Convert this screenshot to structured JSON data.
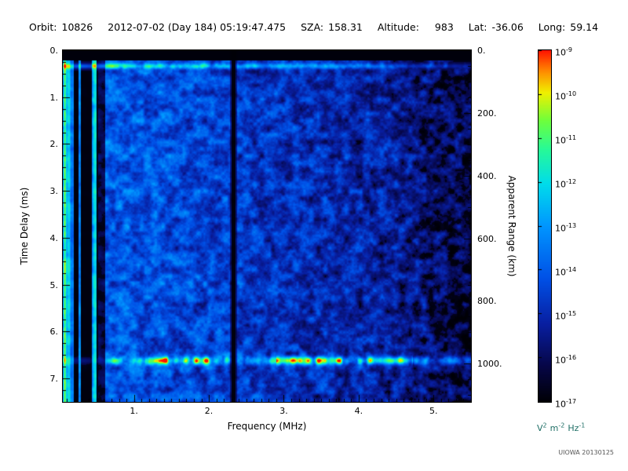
{
  "header": {
    "orbit_label": "Orbit:",
    "orbit_value": "10826",
    "datetime": "2012-07-02 (Day 184) 05:19:47.475",
    "sza_label": "SZA:",
    "sza_value": "158.31",
    "alt_label": "Altitude:",
    "alt_value": "983",
    "lat_label": "Lat:",
    "lat_value": "-36.06",
    "long_label": "Long:",
    "long_value": "59.14"
  },
  "footer": {
    "credit": "UIOWA 20130125"
  },
  "chart_data": {
    "type": "heatmap",
    "title": "",
    "xlabel": "Frequency (MHz)",
    "x_ticks": [
      "1.",
      "2.",
      "3.",
      "4.",
      "5."
    ],
    "x_tick_values": [
      1,
      2,
      3,
      4,
      5
    ],
    "xlim": [
      0.05,
      5.5
    ],
    "ylabel_left": "Time Delay (ms)",
    "y_left_ticks": [
      "0.",
      "1.",
      "2.",
      "3.",
      "4.",
      "5.",
      "6.",
      "7."
    ],
    "y_left_tick_values": [
      0,
      1,
      2,
      3,
      4,
      5,
      6,
      7
    ],
    "ylim_left": [
      0,
      7.5
    ],
    "ylabel_right": "Apparent Range (km)",
    "y_right_ticks": [
      "0.",
      "200.",
      "400.",
      "600.",
      "800.",
      "1000."
    ],
    "y_right_tick_values": [
      0,
      200,
      400,
      600,
      800,
      1000
    ],
    "ylim_right": [
      0,
      1122
    ],
    "grid": false,
    "colorbar": {
      "base": "10",
      "tick_exponents": [
        -9,
        -10,
        -11,
        -12,
        -13,
        -14,
        -15,
        -16,
        -17
      ],
      "unit_parts": [
        [
          "V",
          "2"
        ],
        [
          "m",
          "-2"
        ],
        [
          "Hz",
          "-1"
        ]
      ],
      "top_color": "#ff0000",
      "bottom_color": "#000010"
    },
    "features": {
      "description": "Radar sounder ionogram: blue speckle noise background, brighter toward low frequency, fading to black above ~4.5 MHz",
      "top_blank_band_ms": [
        0,
        0.22
      ],
      "surface_line_ms": 0.34,
      "echo_band_ms": 6.62,
      "echo_band_apparent_range_km": 1000,
      "echo_segments_mhz": [
        [
          1.15,
          2.32
        ],
        [
          2.9,
          4.72
        ]
      ],
      "interference_null_mhz": 2.33,
      "low_freq_stripes_mhz": [
        0.05,
        0.52
      ],
      "noise_fade_start_mhz": 4.35
    }
  }
}
